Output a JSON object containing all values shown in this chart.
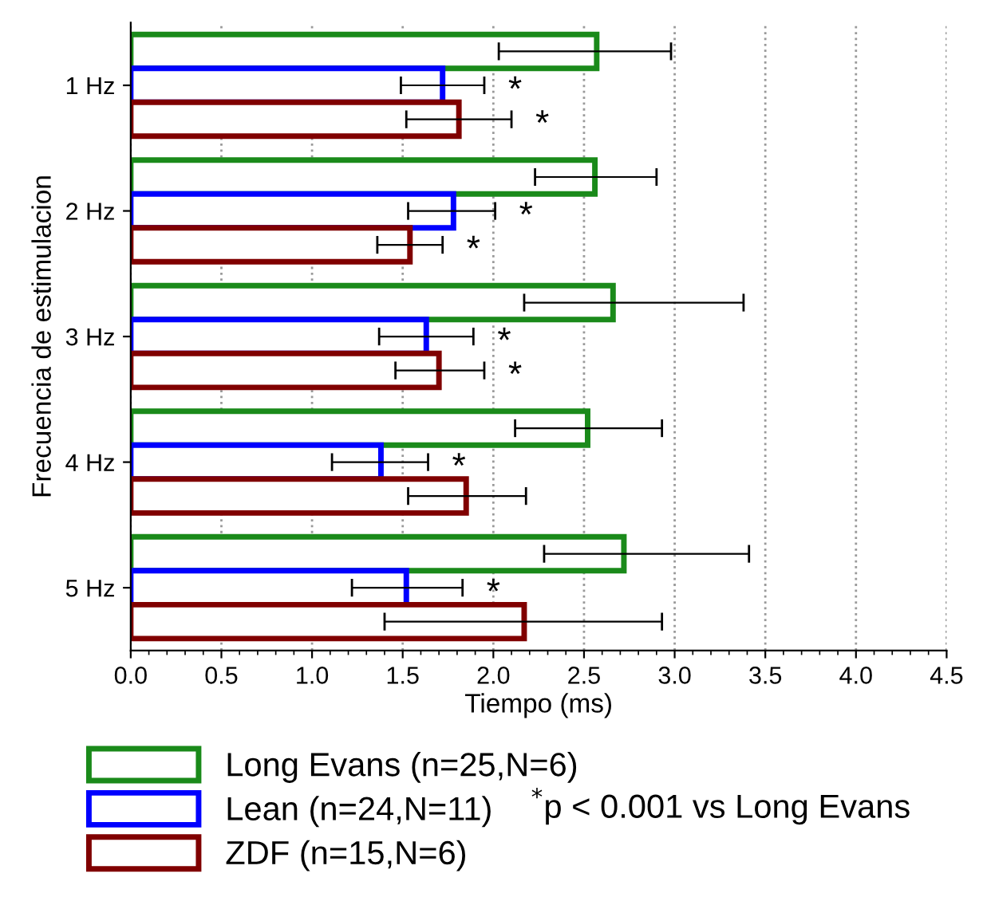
{
  "chart_data": {
    "type": "bar",
    "orientation": "horizontal",
    "xlabel": "Tiempo (ms)",
    "ylabel": "Frecuencia de estimulacion",
    "categories": [
      "1 Hz",
      "2 Hz",
      "3 Hz",
      "4 Hz",
      "5 Hz"
    ],
    "series": [
      {
        "name": "Long Evans (n=25,N=6)",
        "color": "#1a8a1a",
        "values": [
          2.57,
          2.56,
          2.66,
          2.52,
          2.72
        ],
        "errors": [
          [
            2.03,
            2.98
          ],
          [
            2.23,
            2.9
          ],
          [
            2.17,
            3.38
          ],
          [
            2.12,
            2.93
          ],
          [
            2.28,
            3.41
          ]
        ]
      },
      {
        "name": "Lean (n=24,N=11)",
        "color": "#0000ff",
        "values": [
          1.72,
          1.78,
          1.63,
          1.38,
          1.52
        ],
        "errors": [
          [
            1.49,
            1.95
          ],
          [
            1.53,
            2.01
          ],
          [
            1.37,
            1.89
          ],
          [
            1.11,
            1.64
          ],
          [
            1.22,
            1.83
          ]
        ],
        "value_labels": [
          "*",
          "*",
          "*",
          "*",
          "*"
        ]
      },
      {
        "name": "ZDF (n=15,N=6)",
        "color": "#800000",
        "values": [
          1.81,
          1.54,
          1.7,
          1.85,
          2.17
        ],
        "errors": [
          [
            1.52,
            2.1
          ],
          [
            1.36,
            1.72
          ],
          [
            1.46,
            1.95
          ],
          [
            1.53,
            2.18
          ],
          [
            1.4,
            2.93
          ]
        ],
        "value_labels": [
          "*",
          "*",
          "*",
          null,
          null
        ]
      }
    ],
    "xlim": [
      0,
      4.5
    ],
    "xticks": [
      {
        "value": 0,
        "label": "0.0"
      },
      0.5,
      {
        "value": 1,
        "label": "1.0"
      },
      1.5,
      {
        "value": 2,
        "label": "2.0"
      },
      2.5,
      {
        "value": 3,
        "label": "3.0"
      },
      3.5,
      {
        "value": 4,
        "label": "4.0"
      },
      4.5
    ],
    "grid": "x",
    "legend": "bottom",
    "annotations": [
      "$^{*}$p < 0.001 vs Long Evans"
    ]
  }
}
